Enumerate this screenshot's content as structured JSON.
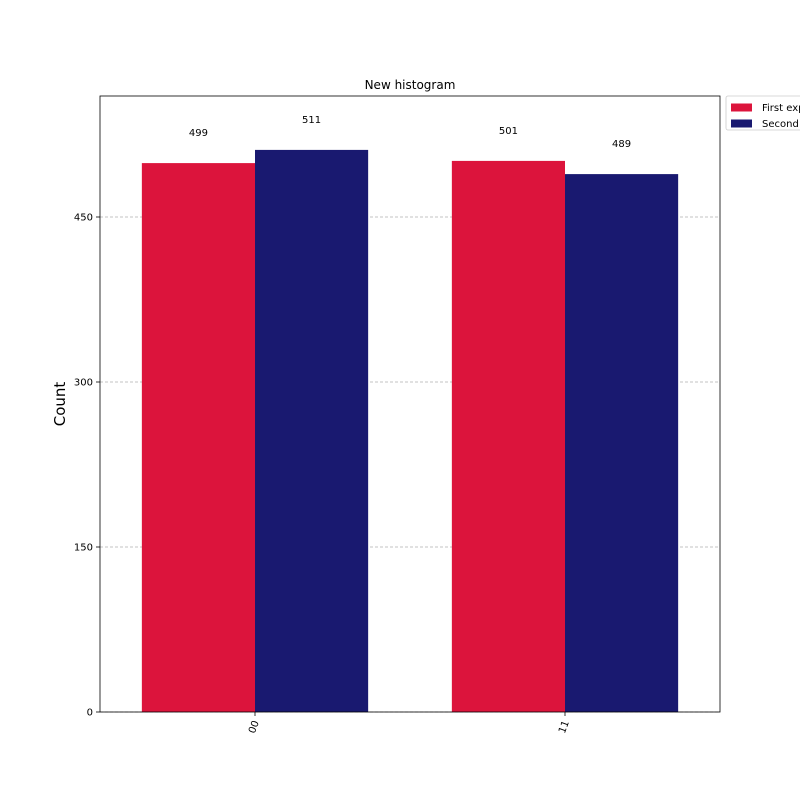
{
  "chart_data": {
    "type": "bar",
    "title": "New histogram",
    "xlabel": "",
    "ylabel": "Count",
    "categories": [
      "00",
      "11"
    ],
    "series": [
      {
        "name": "First experiment",
        "values": [
          499,
          501
        ],
        "color": "#DC143C"
      },
      {
        "name": "Second experiment",
        "values": [
          511,
          489
        ],
        "color": "#191970"
      }
    ],
    "ylim": [
      0,
      560
    ],
    "yticks": [
      0,
      150,
      300,
      450
    ],
    "grid": true,
    "legend_position": "outside-top-right"
  }
}
